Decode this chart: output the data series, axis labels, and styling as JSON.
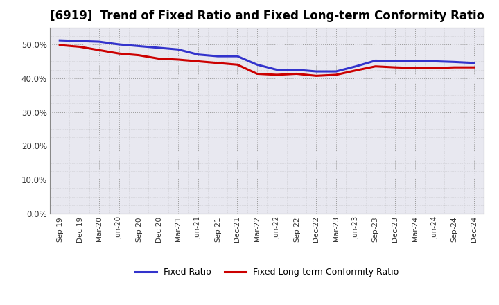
{
  "title": "[6919]  Trend of Fixed Ratio and Fixed Long-term Conformity Ratio",
  "x_labels": [
    "Sep-19",
    "Dec-19",
    "Mar-20",
    "Jun-20",
    "Sep-20",
    "Dec-20",
    "Mar-21",
    "Jun-21",
    "Sep-21",
    "Dec-21",
    "Mar-22",
    "Jun-22",
    "Sep-22",
    "Dec-22",
    "Mar-23",
    "Jun-23",
    "Sep-23",
    "Dec-23",
    "Mar-24",
    "Jun-24",
    "Sep-24",
    "Dec-24"
  ],
  "fixed_ratio": [
    51.2,
    51.0,
    50.8,
    50.0,
    49.5,
    49.0,
    48.5,
    47.0,
    46.5,
    46.5,
    44.0,
    42.5,
    42.5,
    42.0,
    42.0,
    43.5,
    45.2,
    45.0,
    45.0,
    45.0,
    44.8,
    44.5
  ],
  "fixed_lt_ratio": [
    49.8,
    49.3,
    48.3,
    47.3,
    46.8,
    45.8,
    45.5,
    45.0,
    44.5,
    44.0,
    41.3,
    41.0,
    41.3,
    40.7,
    41.0,
    42.3,
    43.5,
    43.2,
    43.0,
    43.0,
    43.2,
    43.2
  ],
  "fixed_ratio_color": "#3333cc",
  "fixed_lt_ratio_color": "#cc0000",
  "plot_bg_color": "#e8e8f0",
  "ylim": [
    0,
    55
  ],
  "yticks": [
    0,
    10,
    20,
    30,
    40,
    50
  ],
  "ytick_labels": [
    "0.0%",
    "10.0%",
    "20.0%",
    "30.0%",
    "40.0%",
    "50.0%"
  ],
  "background_color": "#ffffff",
  "grid_color": "#999999",
  "legend_fixed_ratio": "Fixed Ratio",
  "legend_fixed_lt_ratio": "Fixed Long-term Conformity Ratio",
  "line_width": 2.2,
  "title_fontsize": 12
}
